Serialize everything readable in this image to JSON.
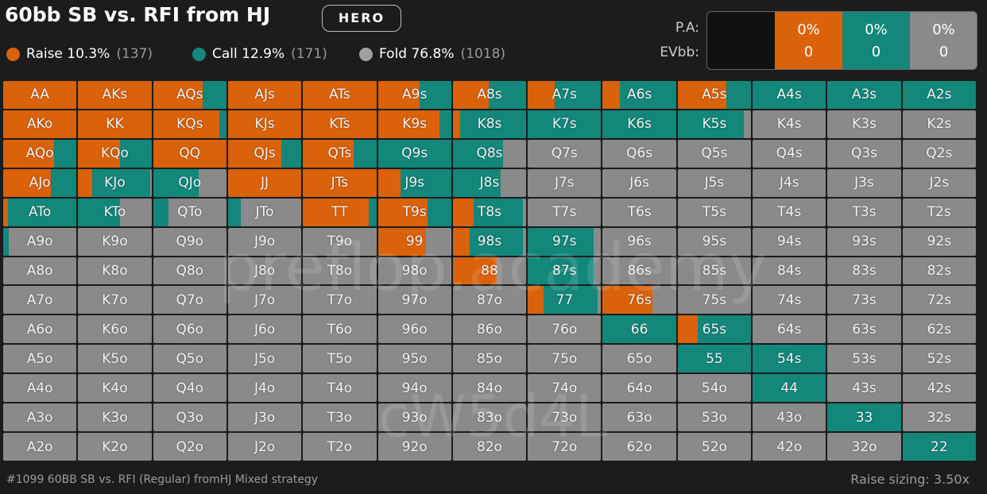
{
  "header": {
    "title": "60bb SB vs. RFI from HJ",
    "badge": "HERO"
  },
  "legend": [
    {
      "label": "Raise 10.3%",
      "count": "(137)",
      "color": "#d9620b"
    },
    {
      "label": "Call 12.9%",
      "count": "(171)",
      "color": "#12877a"
    },
    {
      "label": "Fold 76.8%",
      "count": "(1018)",
      "color": "#a0a0a0"
    }
  ],
  "panel": {
    "labels": [
      "P.A:",
      "EVbb:"
    ],
    "cells": [
      {
        "pa": "0%",
        "ev": "0",
        "color": "#d9620b"
      },
      {
        "pa": "0%",
        "ev": "0",
        "color": "#12877a"
      },
      {
        "pa": "0%",
        "ev": "0",
        "color": "#8a8a8a"
      }
    ]
  },
  "grid": {
    "colors": {
      "raise": "#d9620b",
      "call": "#12877a",
      "fold": "#8a8a8a"
    },
    "hands": [
      [
        "AA",
        "AKs",
        "AQs",
        "AJs",
        "ATs",
        "A9s",
        "A8s",
        "A7s",
        "A6s",
        "A5s",
        "A4s",
        "A3s",
        "A2s"
      ],
      [
        "AKo",
        "KK",
        "KQs",
        "KJs",
        "KTs",
        "K9s",
        "K8s",
        "K7s",
        "K6s",
        "K5s",
        "K4s",
        "K3s",
        "K2s"
      ],
      [
        "AQo",
        "KQo",
        "QQ",
        "QJs",
        "QTs",
        "Q9s",
        "Q8s",
        "Q7s",
        "Q6s",
        "Q5s",
        "Q4s",
        "Q3s",
        "Q2s"
      ],
      [
        "AJo",
        "KJo",
        "QJo",
        "JJ",
        "JTs",
        "J9s",
        "J8s",
        "J7s",
        "J6s",
        "J5s",
        "J4s",
        "J3s",
        "J2s"
      ],
      [
        "ATo",
        "KTo",
        "QTo",
        "JTo",
        "TT",
        "T9s",
        "T8s",
        "T7s",
        "T6s",
        "T5s",
        "T4s",
        "T3s",
        "T2s"
      ],
      [
        "A9o",
        "K9o",
        "Q9o",
        "J9o",
        "T9o",
        "99",
        "98s",
        "97s",
        "96s",
        "95s",
        "94s",
        "93s",
        "92s"
      ],
      [
        "A8o",
        "K8o",
        "Q8o",
        "J8o",
        "T8o",
        "98o",
        "88",
        "87s",
        "86s",
        "85s",
        "84s",
        "83s",
        "82s"
      ],
      [
        "A7o",
        "K7o",
        "Q7o",
        "J7o",
        "T7o",
        "97o",
        "87o",
        "77",
        "76s",
        "75s",
        "74s",
        "73s",
        "72s"
      ],
      [
        "A6o",
        "K6o",
        "Q6o",
        "J6o",
        "T6o",
        "96o",
        "86o",
        "76o",
        "66",
        "65s",
        "64s",
        "63s",
        "62s"
      ],
      [
        "A5o",
        "K5o",
        "Q5o",
        "J5o",
        "T5o",
        "95o",
        "85o",
        "75o",
        "65o",
        "55",
        "54s",
        "53s",
        "52s"
      ],
      [
        "A4o",
        "K4o",
        "Q4o",
        "J4o",
        "T4o",
        "94o",
        "84o",
        "74o",
        "64o",
        "54o",
        "44",
        "43s",
        "42s"
      ],
      [
        "A3o",
        "K3o",
        "Q3o",
        "J3o",
        "T3o",
        "93o",
        "83o",
        "73o",
        "63o",
        "53o",
        "43o",
        "33",
        "32s"
      ],
      [
        "A2o",
        "K2o",
        "Q2o",
        "J2o",
        "T2o",
        "92o",
        "82o",
        "72o",
        "62o",
        "52o",
        "42o",
        "32o",
        "22"
      ]
    ],
    "raise": [
      [
        100,
        100,
        68,
        100,
        100,
        57,
        49,
        37,
        23,
        66,
        0,
        0,
        0
      ],
      [
        100,
        100,
        90,
        100,
        100,
        84,
        10,
        0,
        0,
        0,
        0,
        0,
        0
      ],
      [
        69,
        57,
        100,
        73,
        69,
        0,
        0,
        0,
        0,
        0,
        0,
        0,
        0
      ],
      [
        65,
        19,
        0,
        100,
        100,
        31,
        0,
        0,
        0,
        0,
        0,
        0,
        0
      ],
      [
        6,
        0,
        0,
        0,
        90,
        68,
        28,
        0,
        0,
        0,
        0,
        0,
        0
      ],
      [
        0,
        0,
        0,
        0,
        0,
        65,
        23,
        0,
        0,
        0,
        0,
        0,
        0
      ],
      [
        0,
        0,
        0,
        0,
        0,
        0,
        60,
        0,
        0,
        0,
        0,
        0,
        0
      ],
      [
        0,
        0,
        0,
        0,
        0,
        0,
        0,
        21,
        68,
        0,
        0,
        0,
        0
      ],
      [
        0,
        0,
        0,
        0,
        0,
        0,
        0,
        0,
        0,
        27,
        0,
        0,
        0
      ],
      [
        0,
        0,
        0,
        0,
        0,
        0,
        0,
        0,
        0,
        0,
        0,
        0,
        0
      ],
      [
        0,
        0,
        0,
        0,
        0,
        0,
        0,
        0,
        0,
        0,
        0,
        0,
        0
      ],
      [
        0,
        0,
        0,
        0,
        0,
        0,
        0,
        0,
        0,
        0,
        0,
        0,
        0
      ],
      [
        0,
        0,
        0,
        0,
        0,
        0,
        0,
        0,
        0,
        0,
        0,
        0,
        0
      ]
    ],
    "call": [
      [
        0,
        0,
        32,
        0,
        0,
        43,
        51,
        63,
        77,
        34,
        100,
        100,
        100
      ],
      [
        0,
        0,
        10,
        0,
        0,
        16,
        90,
        100,
        100,
        90,
        0,
        0,
        0
      ],
      [
        31,
        43,
        0,
        27,
        31,
        100,
        68,
        0,
        0,
        0,
        0,
        0,
        0
      ],
      [
        35,
        79,
        62,
        0,
        0,
        69,
        65,
        0,
        0,
        0,
        0,
        0,
        0
      ],
      [
        94,
        57,
        21,
        17,
        10,
        32,
        67,
        0,
        0,
        0,
        0,
        0,
        0
      ],
      [
        8,
        0,
        0,
        0,
        0,
        0,
        72,
        90,
        0,
        0,
        0,
        0,
        0
      ],
      [
        0,
        0,
        0,
        0,
        0,
        0,
        0,
        90,
        0,
        0,
        0,
        0,
        0
      ],
      [
        0,
        0,
        0,
        0,
        0,
        0,
        0,
        74,
        0,
        0,
        0,
        0,
        0
      ],
      [
        0,
        0,
        0,
        0,
        0,
        0,
        0,
        0,
        100,
        73,
        0,
        0,
        0
      ],
      [
        0,
        0,
        0,
        0,
        0,
        0,
        0,
        0,
        0,
        100,
        100,
        0,
        0
      ],
      [
        0,
        0,
        0,
        0,
        0,
        0,
        0,
        0,
        0,
        0,
        100,
        0,
        0
      ],
      [
        0,
        0,
        0,
        0,
        0,
        0,
        0,
        0,
        0,
        0,
        0,
        100,
        0
      ],
      [
        0,
        0,
        0,
        0,
        0,
        0,
        0,
        0,
        0,
        0,
        0,
        0,
        100
      ]
    ]
  },
  "watermarks": [
    "preflop.academy",
    "cW5d4L"
  ],
  "footer": {
    "left": "#1099 60BB SB vs. RFI (Regular) fromHJ Mixed strategy",
    "right": "Raise sizing: 3.50x"
  }
}
